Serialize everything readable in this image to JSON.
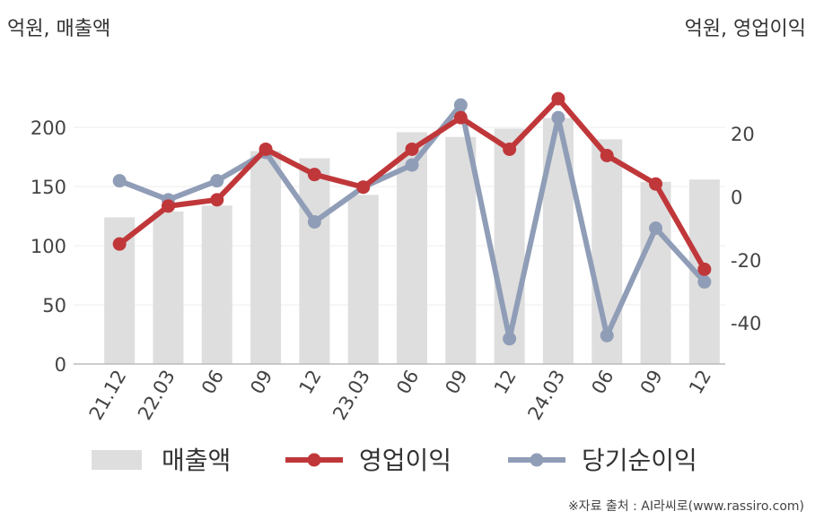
{
  "header": {
    "left_unit": "억원, 매출액",
    "right_unit": "억원, 영업이익"
  },
  "source": "※자료 출처 : AI라씨로(www.rassiro.com)",
  "chart_data": {
    "type": "bar",
    "categories": [
      "21.12",
      "22.03",
      "06",
      "09",
      "12",
      "23.03",
      "06",
      "09",
      "12",
      "24.03",
      "06",
      "09",
      "12"
    ],
    "series": [
      {
        "name": "매출액",
        "type": "bar",
        "axis": "left",
        "values": [
          124,
          129,
          134,
          180,
          174,
          143,
          196,
          192,
          199,
          208,
          190,
          154,
          156
        ]
      },
      {
        "name": "영업이익",
        "type": "line",
        "axis": "right",
        "values": [
          -15,
          -3,
          -1,
          15,
          7,
          3,
          15,
          25,
          15,
          31,
          13,
          4,
          -23
        ]
      },
      {
        "name": "당기순이익",
        "type": "line",
        "axis": "right",
        "values": [
          5,
          -1,
          5,
          14,
          -8,
          3,
          10,
          29,
          -45,
          25,
          -44,
          -10,
          -27
        ]
      }
    ],
    "y_left": {
      "ticks": [
        0,
        50,
        100,
        150,
        200
      ],
      "range": [
        0,
        235
      ]
    },
    "y_right": {
      "ticks": [
        -40,
        -20,
        0,
        20
      ],
      "range": [
        -53,
        35
      ]
    },
    "grid": true,
    "legend_position": "bottom"
  },
  "colors": {
    "bar": "#dedede",
    "operating": "#c0373a",
    "net": "#909db7",
    "axis": "#bbbbbb",
    "grid": "#eeeeee"
  }
}
